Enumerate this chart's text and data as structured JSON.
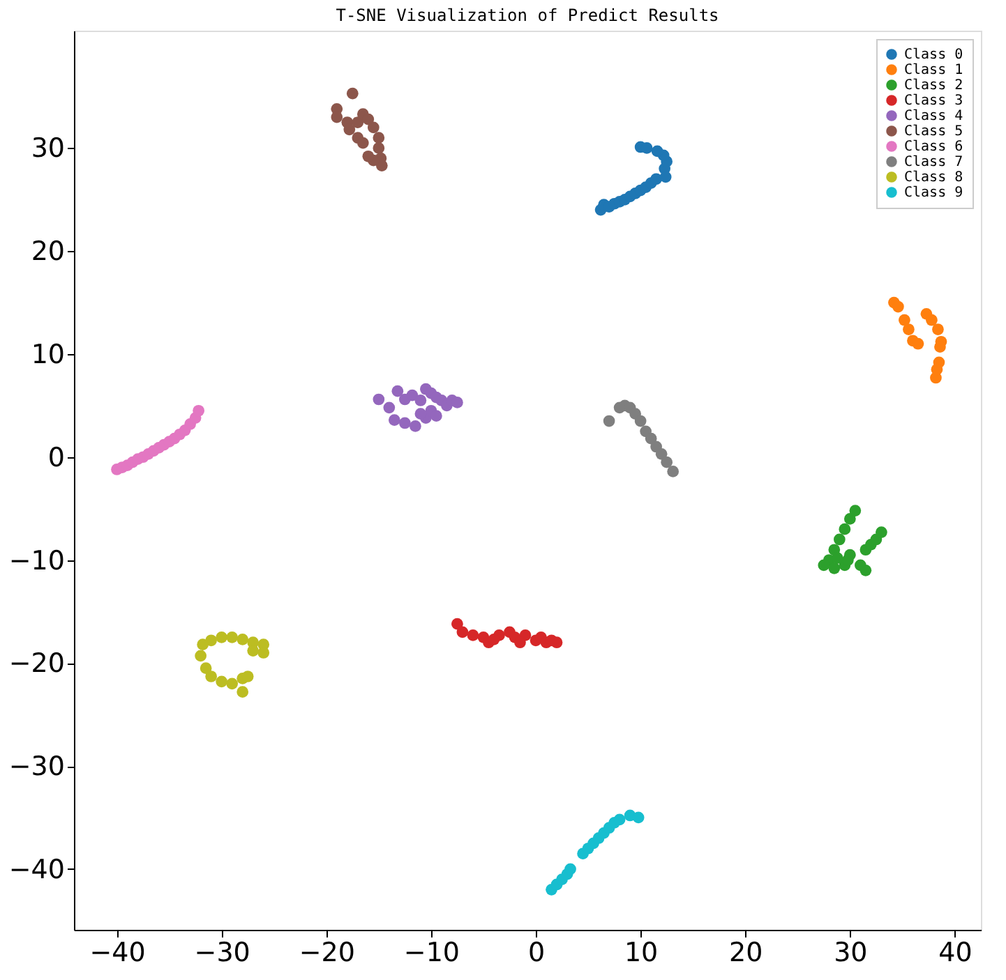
{
  "chart_data": {
    "type": "scatter",
    "title": "T-SNE Visualization of Predict Results",
    "xlim": [
      -44.1,
      42.5
    ],
    "ylim": [
      -45.9,
      41.4
    ],
    "xticks": [
      -40,
      -30,
      -20,
      -10,
      0,
      10,
      20,
      30,
      40
    ],
    "yticks": [
      -40,
      -30,
      -20,
      -10,
      0,
      10,
      20,
      30
    ],
    "grid": false,
    "legend": "top right",
    "marker": "circle",
    "series": [
      {
        "name": "Class 0",
        "color": "#1f77b4",
        "x": [
          6.2,
          6.5,
          7,
          7.5,
          8,
          8.5,
          9,
          9.5,
          10,
          10.5,
          11,
          11.5,
          12.3,
          12.5,
          12.2,
          11.6,
          10,
          10.6,
          12.4
        ],
        "values": [
          24,
          24.5,
          24.3,
          24.6,
          24.8,
          25,
          25.3,
          25.6,
          25.9,
          26.2,
          26.6,
          27,
          28,
          28.7,
          29.3,
          29.7,
          30.1,
          30,
          27.2
        ]
      },
      {
        "name": "Class 1",
        "color": "#ff7f0e",
        "x": [
          34.2,
          34.6,
          35.2,
          35.6,
          36,
          36.5,
          37.3,
          37.8,
          38.4,
          38.7,
          38.6,
          38.5,
          38.2,
          38.3
        ],
        "values": [
          15,
          14.6,
          13.3,
          12.4,
          11.3,
          11,
          13.9,
          13.3,
          12.4,
          11.2,
          10.7,
          9.2,
          7.7,
          8.5
        ]
      },
      {
        "name": "Class 2",
        "color": "#2ca02c",
        "x": [
          30.5,
          30,
          29.5,
          29,
          28.5,
          28,
          27.5,
          28.5,
          29.5,
          30,
          31,
          31.5,
          31.5,
          32,
          32.5,
          33,
          29.8,
          28.8
        ],
        "values": [
          -5.2,
          -6,
          -7,
          -8,
          -9,
          -10,
          -10.5,
          -10.8,
          -10.5,
          -9.5,
          -10.5,
          -11,
          -9,
          -8.5,
          -8,
          -7.3,
          -10,
          -9.8
        ]
      },
      {
        "name": "Class 3",
        "color": "#d62728",
        "x": [
          -7.5,
          -7,
          -6,
          -5,
          -4.5,
          -3.5,
          -2.5,
          -2,
          -1,
          0,
          0.5,
          1,
          2,
          1.5,
          -1.5,
          -4
        ],
        "values": [
          -16.2,
          -17,
          -17.3,
          -17.5,
          -18,
          -17.3,
          -17,
          -17.5,
          -17.3,
          -17.8,
          -17.5,
          -18,
          -18,
          -17.8,
          -18,
          -17.7
        ]
      },
      {
        "name": "Class 4",
        "color": "#9467bd",
        "x": [
          -15,
          -14,
          -13.2,
          -12.5,
          -11.8,
          -11,
          -10.5,
          -10,
          -9.5,
          -9,
          -8.5,
          -8,
          -7.5,
          -13.5,
          -12.5,
          -11.5,
          -10.5,
          -10,
          -9.5,
          -11
        ],
        "values": [
          5.6,
          4.8,
          6.4,
          5.6,
          6,
          5.5,
          6.6,
          6.2,
          5.8,
          5.5,
          5,
          5.5,
          5.3,
          3.6,
          3.3,
          3,
          3.8,
          4.5,
          4,
          4.2
        ]
      },
      {
        "name": "Class 5",
        "color": "#8c564b",
        "x": [
          -17.5,
          -19,
          -19,
          -18,
          -17,
          -16.5,
          -16,
          -15.5,
          -15,
          -15,
          -14.8,
          -14.7,
          -15.5,
          -16,
          -17,
          -16.5,
          -17.8
        ],
        "values": [
          35.3,
          33.8,
          33,
          32.5,
          32.5,
          33.3,
          32.8,
          32,
          31,
          30,
          29,
          28.3,
          28.8,
          29.2,
          31,
          30.5,
          31.8
        ]
      },
      {
        "name": "Class 6",
        "color": "#e377c2",
        "x": [
          -40,
          -39.5,
          -39,
          -38.5,
          -38,
          -37.5,
          -37,
          -36.5,
          -36,
          -35.5,
          -35,
          -34.5,
          -34,
          -33.5,
          -33,
          -32.5,
          -32.2
        ],
        "values": [
          -1.2,
          -1,
          -0.8,
          -0.5,
          -0.2,
          0,
          0.3,
          0.6,
          0.9,
          1.2,
          1.5,
          1.8,
          2.2,
          2.6,
          3.2,
          3.8,
          4.5
        ]
      },
      {
        "name": "Class 7",
        "color": "#7f7f7f",
        "x": [
          7,
          8,
          8.5,
          9,
          9.5,
          10,
          10.5,
          11,
          11.5,
          12,
          12.5,
          13.1
        ],
        "values": [
          3.5,
          4.8,
          5,
          4.8,
          4.2,
          3.5,
          2.5,
          1.8,
          1,
          0.3,
          -0.5,
          -1.4
        ]
      },
      {
        "name": "Class 8",
        "color": "#bcbd22",
        "x": [
          -31,
          -30,
          -29,
          -28,
          -27,
          -26,
          -26,
          -27,
          -31.8,
          -32,
          -31.5,
          -31,
          -30,
          -29,
          -28,
          -27.5,
          -28
        ],
        "values": [
          -17.8,
          -17.5,
          -17.5,
          -17.7,
          -18,
          -18.2,
          -19,
          -18.8,
          -18.2,
          -19.3,
          -20.5,
          -21.3,
          -21.8,
          -22,
          -21.5,
          -21.3,
          -22.8
        ]
      },
      {
        "name": "Class 9",
        "color": "#17becf",
        "x": [
          1.5,
          2,
          2.5,
          3,
          3.3,
          4.5,
          5,
          5.5,
          6,
          6.5,
          7,
          7.5,
          8,
          9,
          9.8
        ],
        "values": [
          -42,
          -41.5,
          -41,
          -40.5,
          -40,
          -38.5,
          -38,
          -37.5,
          -37,
          -36.5,
          -36,
          -35.5,
          -35.2,
          -34.8,
          -35
        ]
      }
    ]
  }
}
